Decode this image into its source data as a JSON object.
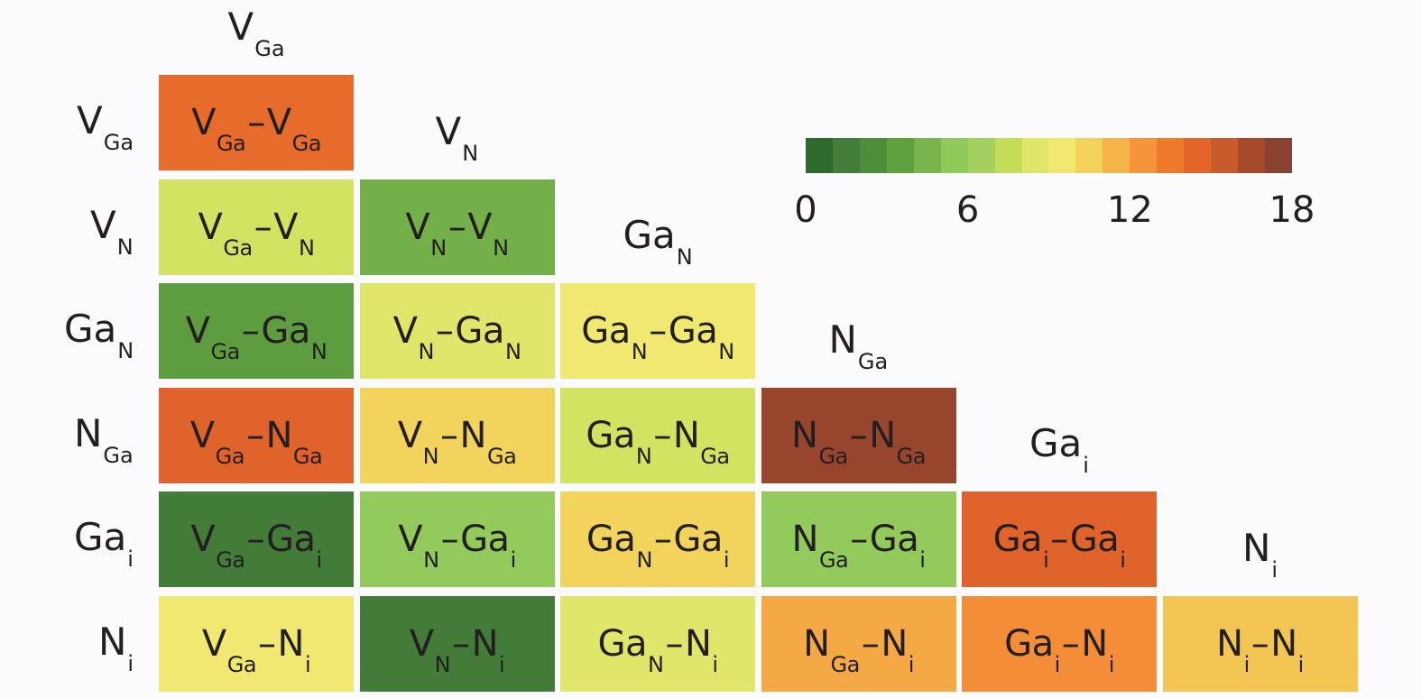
{
  "chart_data": {
    "type": "heatmap",
    "layout": "lower-triangular",
    "species": [
      {
        "id": "VGa",
        "base": "V",
        "sub": "Ga"
      },
      {
        "id": "VN",
        "base": "V",
        "sub": "N"
      },
      {
        "id": "GaN",
        "base": "Ga",
        "sub": "N"
      },
      {
        "id": "NGa",
        "base": "N",
        "sub": "Ga"
      },
      {
        "id": "Gai",
        "base": "Ga",
        "sub": "i"
      },
      {
        "id": "Ni",
        "base": "N",
        "sub": "i"
      }
    ],
    "cells": [
      {
        "row": 0,
        "col": 0,
        "value": 14.5
      },
      {
        "row": 1,
        "col": 0,
        "value": 8.0
      },
      {
        "row": 1,
        "col": 1,
        "value": 4.0
      },
      {
        "row": 2,
        "col": 0,
        "value": 3.0
      },
      {
        "row": 2,
        "col": 1,
        "value": 8.5
      },
      {
        "row": 2,
        "col": 2,
        "value": 9.5
      },
      {
        "row": 3,
        "col": 0,
        "value": 15.0
      },
      {
        "row": 3,
        "col": 1,
        "value": 10.5
      },
      {
        "row": 3,
        "col": 2,
        "value": 8.0
      },
      {
        "row": 3,
        "col": 3,
        "value": 17.5
      },
      {
        "row": 4,
        "col": 0,
        "value": 1.0
      },
      {
        "row": 4,
        "col": 1,
        "value": 5.5
      },
      {
        "row": 4,
        "col": 2,
        "value": 10.5
      },
      {
        "row": 4,
        "col": 3,
        "value": 5.5
      },
      {
        "row": 4,
        "col": 4,
        "value": 15.0
      },
      {
        "row": 5,
        "col": 0,
        "value": 9.5
      },
      {
        "row": 5,
        "col": 1,
        "value": 1.0
      },
      {
        "row": 5,
        "col": 2,
        "value": 8.5
      },
      {
        "row": 5,
        "col": 3,
        "value": 12.0
      },
      {
        "row": 5,
        "col": 4,
        "value": 13.0
      },
      {
        "row": 5,
        "col": 5,
        "value": 11.0
      }
    ],
    "colorbar": {
      "min": 0,
      "max": 18,
      "ticks": [
        "0",
        "6",
        "12",
        "18"
      ],
      "colors": [
        "#2e6a2b",
        "#437d39",
        "#4f8e38",
        "#60a040",
        "#79b54c",
        "#8ec95a",
        "#a4d060",
        "#c4dc58",
        "#e0e66a",
        "#f0e870",
        "#f2d25a",
        "#f5b349",
        "#f5943b",
        "#f07a2c",
        "#e3652a",
        "#c95a2c",
        "#a64a2a",
        "#8a4230"
      ]
    }
  }
}
